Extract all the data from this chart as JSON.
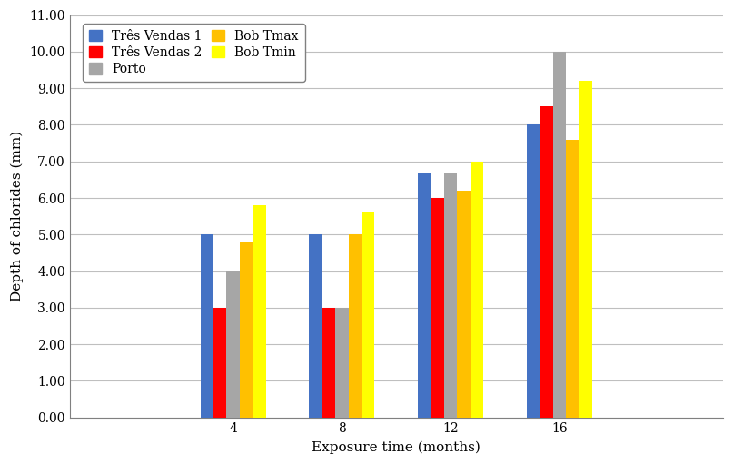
{
  "xlabel": "Exposure time (months)",
  "ylabel": "Depth of chlorides (mm)",
  "categories": [
    4,
    8,
    12,
    16
  ],
  "series": {
    "Três Vendas 1": [
      5.0,
      5.0,
      6.7,
      8.0
    ],
    "Três Vendas 2": [
      3.0,
      3.0,
      6.0,
      8.5
    ],
    "Porto": [
      4.0,
      3.0,
      6.7,
      10.0
    ],
    "Bob Tmax": [
      4.8,
      5.0,
      6.2,
      7.6
    ],
    "Bob Tmin": [
      5.8,
      5.6,
      7.0,
      9.2
    ]
  },
  "colors": {
    "Três Vendas 1": "#4472C4",
    "Três Vendas 2": "#FF0000",
    "Porto": "#A6A6A6",
    "Bob Tmax": "#FFC000",
    "Bob Tmin": "#FFFF00"
  },
  "ylim": [
    0,
    11.0
  ],
  "yticks": [
    0.0,
    1.0,
    2.0,
    3.0,
    4.0,
    5.0,
    6.0,
    7.0,
    8.0,
    9.0,
    10.0,
    11.0
  ],
  "ytick_labels": [
    "0.00",
    "1.00",
    "2.00",
    "3.00",
    "4.00",
    "5.00",
    "6.00",
    "7.00",
    "8.00",
    "9.00",
    "10.00",
    "11.00"
  ],
  "legend_order": [
    "Três Vendas 1",
    "Três Vendas 2",
    "Porto",
    "Bob Tmax",
    "Bob Tmin"
  ],
  "bar_width": 0.12,
  "background_color": "#FFFFFF",
  "grid_color": "#BFBFBF",
  "font_family": "DejaVu Serif"
}
